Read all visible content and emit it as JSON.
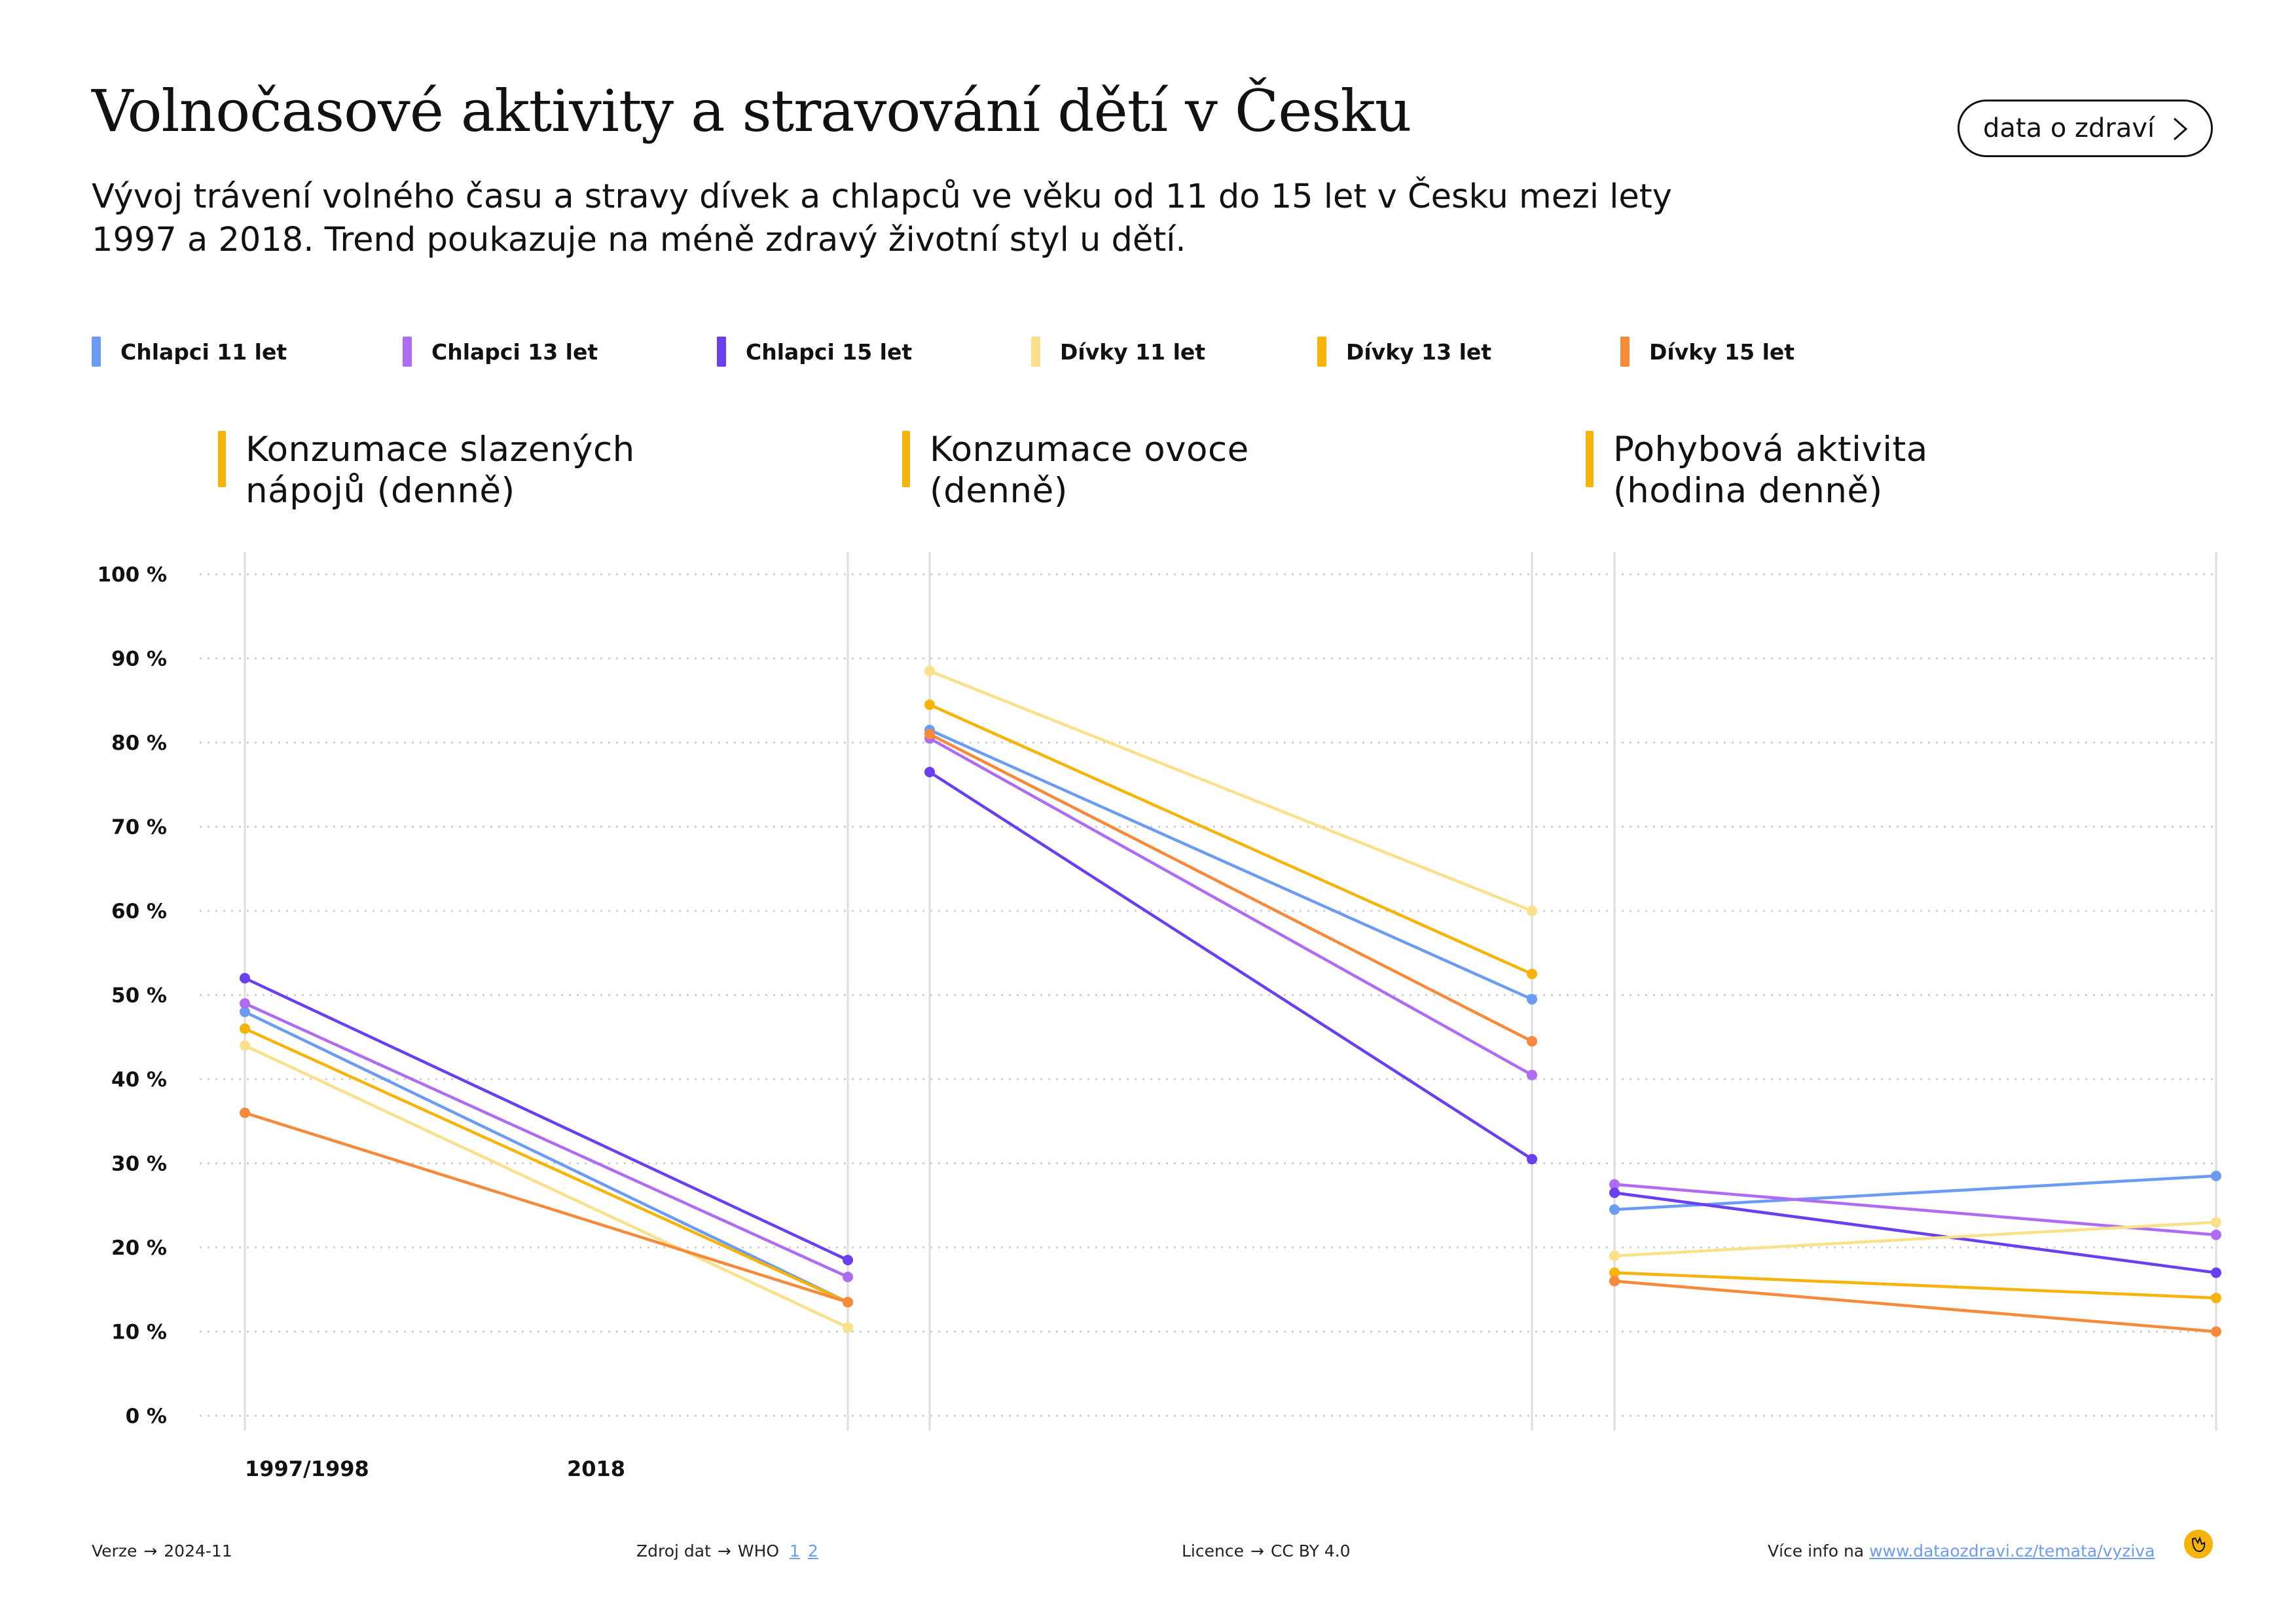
{
  "header": {
    "title": "Volnočasové aktivity a stravování dětí v Česku",
    "subtitle_line1": "Vývoj trávení volného času a stravy dívek a chlapců ve věku od 11 do 15 let v Česku mezi lety",
    "subtitle_line2": "1997 a 2018. Trend poukazuje na méně zdravý životní styl u dětí.",
    "button_label": "data o zdraví",
    "button_icon": "chevron-right-icon"
  },
  "legend": [
    {
      "label": "Chlapci 11 let",
      "color": "#6b9bf3"
    },
    {
      "label": "Chlapci 13 let",
      "color": "#b06bf3"
    },
    {
      "label": "Chlapci 15 let",
      "color": "#6a3ff0"
    },
    {
      "label": "Dívky 11 let",
      "color": "#fbe08c"
    },
    {
      "label": "Dívky 13 let",
      "color": "#f6b40b"
    },
    {
      "label": "Dívky 15 let",
      "color": "#f7893a"
    }
  ],
  "chart_data": {
    "type": "line",
    "y_tick_labels": [
      "0 %",
      "10 %",
      "20 %",
      "30 %",
      "40 %",
      "50 %",
      "60 %",
      "70 %",
      "80 %",
      "90 %",
      "100 %"
    ],
    "ylim": [
      0,
      100
    ],
    "x_labels": [
      "1997/1998",
      "2018"
    ],
    "grid": true,
    "panels": [
      {
        "title_line1": "Konzumace slazených",
        "title_line2": "nápojů (denně)",
        "series": [
          {
            "name": "Chlapci 11 let",
            "values": [
              48,
              13.5
            ]
          },
          {
            "name": "Chlapci 13 let",
            "values": [
              49,
              16.5
            ]
          },
          {
            "name": "Chlapci 15 let",
            "values": [
              52,
              18.5
            ]
          },
          {
            "name": "Dívky 11 let",
            "values": [
              44,
              10.5
            ]
          },
          {
            "name": "Dívky 13 let",
            "values": [
              46,
              13.5
            ]
          },
          {
            "name": "Dívky 15 let",
            "values": [
              36,
              13.5
            ]
          }
        ]
      },
      {
        "title_line1": "Konzumace ovoce",
        "title_line2": "(denně)",
        "series": [
          {
            "name": "Chlapci 11 let",
            "values": [
              81.5,
              49.5
            ]
          },
          {
            "name": "Chlapci 13 let",
            "values": [
              80.5,
              40.5
            ]
          },
          {
            "name": "Chlapci 15 let",
            "values": [
              76.5,
              30.5
            ]
          },
          {
            "name": "Dívky 11 let",
            "values": [
              88.5,
              60
            ]
          },
          {
            "name": "Dívky 13 let",
            "values": [
              84.5,
              52.5
            ]
          },
          {
            "name": "Dívky 15 let",
            "values": [
              81,
              44.5
            ]
          }
        ]
      },
      {
        "title_line1": "Pohybová aktivita",
        "title_line2": "(hodina denně)",
        "series": [
          {
            "name": "Chlapci 11 let",
            "values": [
              24.5,
              28.5
            ]
          },
          {
            "name": "Chlapci 13 let",
            "values": [
              27.5,
              21.5
            ]
          },
          {
            "name": "Chlapci 15 let",
            "values": [
              26.5,
              17
            ]
          },
          {
            "name": "Dívky 11 let",
            "values": [
              19,
              23
            ]
          },
          {
            "name": "Dívky 13 let",
            "values": [
              17,
              14
            ]
          },
          {
            "name": "Dívky 15 let",
            "values": [
              16,
              10
            ]
          }
        ]
      }
    ]
  },
  "footer": {
    "version_label": "Verze",
    "version_value": "2024-11",
    "source_label": "Zdroj dat",
    "source_value": "WHO",
    "source_link1": "1",
    "source_link2": "2",
    "license_label": "Licence",
    "license_value": "CC BY 4.0",
    "more_label": "Více info na",
    "more_link": "www.dataozdravi.cz/temata/vyziva",
    "arrow": "→"
  }
}
